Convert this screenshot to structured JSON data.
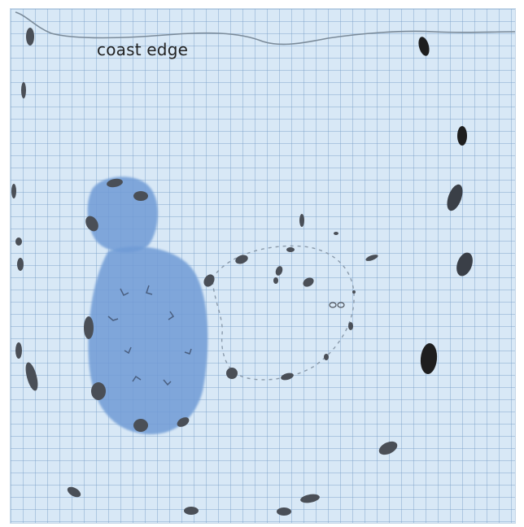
{
  "diagram": {
    "coast_label": "coast edge",
    "colors": {
      "paper": "#d8e8f6",
      "grid": "#8fb3d4",
      "coast_line": "#7a8a99",
      "feature_fill": "#6f9bd6",
      "post_hole": "#4a4f57",
      "post_hole_dark": "#1e1e1e",
      "dashed_outline": "#8a9aab"
    }
  }
}
